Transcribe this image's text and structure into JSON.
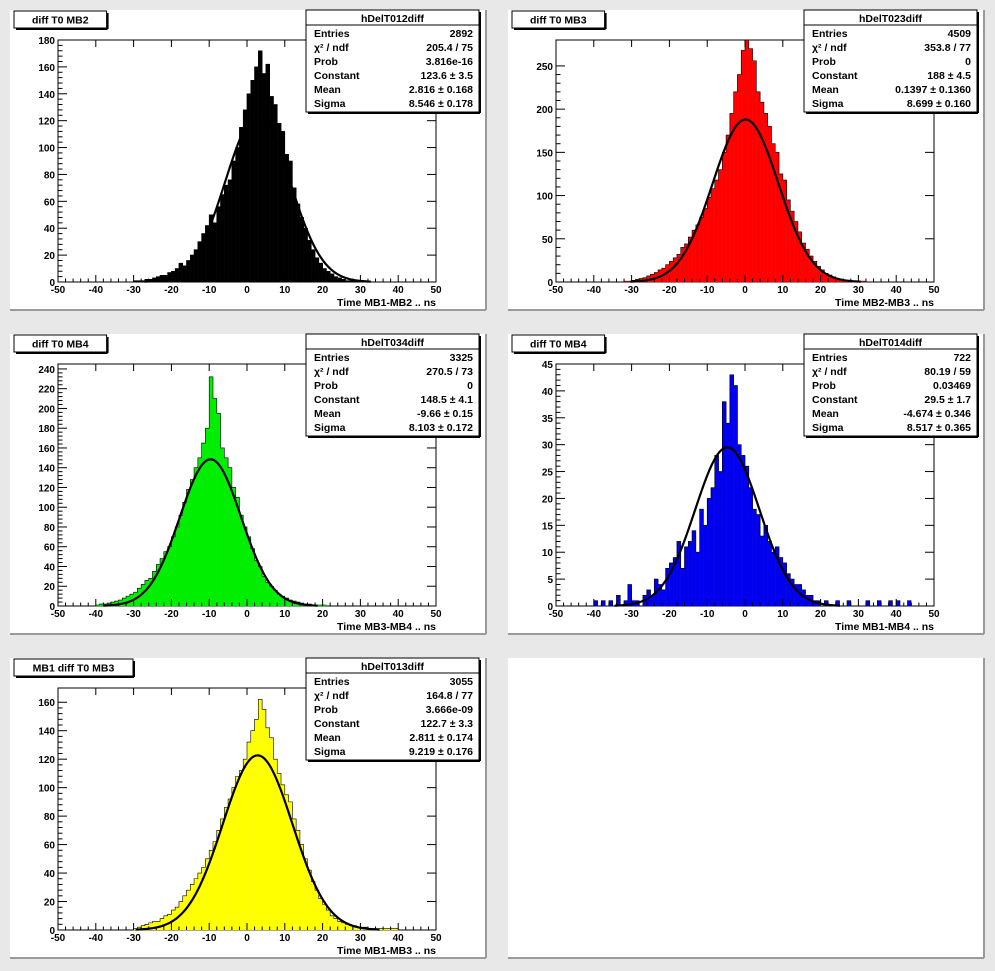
{
  "chart_data": [
    {
      "type": "histogram",
      "pad_title": "diff T0 MB2",
      "stats_title": "hDelT012diff",
      "color": "#000000",
      "xlabel": "Time MB1-MB2  ..  ns",
      "xlim": [
        -50,
        50
      ],
      "ylim": [
        0,
        180
      ],
      "xticks": [
        "-50",
        "-40",
        "-30",
        "-20",
        "-10",
        "0",
        "10",
        "20",
        "30",
        "40",
        "50"
      ],
      "yticks": [
        "0",
        "20",
        "40",
        "60",
        "80",
        "100",
        "120",
        "140",
        "160",
        "180"
      ],
      "stats": [
        {
          "label": "Entries",
          "value": "2892"
        },
        {
          "label": "χ² / ndf",
          "value": "205.4 / 75"
        },
        {
          "label": "Prob",
          "value": "3.816e-16"
        },
        {
          "label": "Constant",
          "value": "123.6 ± 3.5"
        },
        {
          "label": "Mean",
          "value": "2.816 ± 0.168"
        },
        {
          "label": "Sigma",
          "value": "8.546 ± 0.178"
        }
      ],
      "fit": {
        "constant": 123.6,
        "mean": 2.816,
        "sigma": 8.546
      },
      "bin_width": 1,
      "bins_x": [
        -30,
        -29,
        -28,
        -27,
        -26,
        -25,
        -24,
        -23,
        -22,
        -21,
        -20,
        -19,
        -18,
        -17,
        -16,
        -15,
        -14,
        -13,
        -12,
        -11,
        -10,
        -9,
        -8,
        -7,
        -6,
        -5,
        -4,
        -3,
        -2,
        -1,
        0,
        1,
        2,
        3,
        4,
        5,
        6,
        7,
        8,
        9,
        10,
        11,
        12,
        13,
        14,
        15,
        16,
        17,
        18,
        19,
        20,
        21,
        22,
        23,
        24,
        25,
        26,
        27,
        28,
        29
      ],
      "bins_y": [
        1,
        1,
        1,
        2,
        2,
        3,
        4,
        5,
        5,
        7,
        8,
        10,
        14,
        12,
        16,
        20,
        24,
        30,
        36,
        42,
        50,
        44,
        56,
        65,
        72,
        76,
        90,
        100,
        115,
        128,
        140,
        150,
        160,
        172,
        155,
        162,
        138,
        132,
        118,
        112,
        95,
        90,
        70,
        58,
        48,
        40,
        31,
        24,
        18,
        14,
        10,
        8,
        6,
        4,
        3,
        2,
        1,
        1,
        1,
        1
      ]
    },
    {
      "type": "histogram",
      "pad_title": "diff T0 MB3",
      "stats_title": "hDelT023diff",
      "color": "#ff0000",
      "xlabel": "Time MB2-MB3  ..  ns",
      "xlim": [
        -50,
        50
      ],
      "ylim": [
        0,
        280
      ],
      "xticks": [
        "-50",
        "-40",
        "-30",
        "-20",
        "-10",
        "0",
        "10",
        "20",
        "30",
        "40",
        "50"
      ],
      "yticks": [
        "0",
        "50",
        "100",
        "150",
        "200",
        "250"
      ],
      "stats": [
        {
          "label": "Entries",
          "value": "4509"
        },
        {
          "label": "χ² / ndf",
          "value": "353.8 / 77"
        },
        {
          "label": "Prob",
          "value": "0"
        },
        {
          "label": "Constant",
          "value": "188 ± 4.5"
        },
        {
          "label": "Mean",
          "value": "0.1397 ± 0.1360"
        },
        {
          "label": "Sigma",
          "value": "8.699 ± 0.160"
        }
      ],
      "fit": {
        "constant": 188,
        "mean": 0.1397,
        "sigma": 8.699
      },
      "bin_width": 1,
      "bins_x": [
        -32,
        -31,
        -30,
        -29,
        -28,
        -27,
        -26,
        -25,
        -24,
        -23,
        -22,
        -21,
        -20,
        -19,
        -18,
        -17,
        -16,
        -15,
        -14,
        -13,
        -12,
        -11,
        -10,
        -9,
        -8,
        -7,
        -6,
        -5,
        -4,
        -3,
        -2,
        -1,
        0,
        1,
        2,
        3,
        4,
        5,
        6,
        7,
        8,
        9,
        10,
        11,
        12,
        13,
        14,
        15,
        16,
        17,
        18,
        19,
        20,
        21,
        22,
        23,
        24,
        25,
        26,
        27,
        28,
        29,
        30,
        31
      ],
      "bins_y": [
        1,
        1,
        2,
        3,
        4,
        5,
        7,
        9,
        11,
        14,
        16,
        20,
        24,
        28,
        32,
        40,
        44,
        52,
        60,
        66,
        75,
        85,
        98,
        108,
        118,
        130,
        150,
        170,
        195,
        220,
        240,
        268,
        285,
        270,
        256,
        220,
        208,
        195,
        180,
        160,
        150,
        125,
        118,
        95,
        82,
        70,
        58,
        45,
        38,
        30,
        24,
        18,
        14,
        10,
        8,
        6,
        4,
        3,
        2,
        2,
        1,
        1,
        1,
        1
      ]
    },
    {
      "type": "histogram",
      "pad_title": "diff T0 MB4",
      "stats_title": "hDelT034diff",
      "color": "#00ee00",
      "xlabel": "Time MB3-MB4  ..  ns",
      "xlim": [
        -50,
        50
      ],
      "ylim": [
        0,
        245
      ],
      "xticks": [
        "-50",
        "-40",
        "-30",
        "-20",
        "-10",
        "0",
        "10",
        "20",
        "30",
        "40",
        "50"
      ],
      "yticks": [
        "0",
        "20",
        "40",
        "60",
        "80",
        "100",
        "120",
        "140",
        "160",
        "180",
        "200",
        "220",
        "240"
      ],
      "stats": [
        {
          "label": "Entries",
          "value": "3325"
        },
        {
          "label": "χ² / ndf",
          "value": "270.5 / 73"
        },
        {
          "label": "Prob",
          "value": "0"
        },
        {
          "label": "Constant",
          "value": "148.5 ± 4.1"
        },
        {
          "label": "Mean",
          "value": "-9.66 ± 0.15"
        },
        {
          "label": "Sigma",
          "value": "8.103 ± 0.172"
        }
      ],
      "fit": {
        "constant": 148.5,
        "mean": -9.66,
        "sigma": 8.103
      },
      "bin_width": 1,
      "bins_x": [
        -40,
        -39,
        -38,
        -37,
        -36,
        -35,
        -34,
        -33,
        -32,
        -31,
        -30,
        -29,
        -28,
        -27,
        -26,
        -25,
        -24,
        -23,
        -22,
        -21,
        -20,
        -19,
        -18,
        -17,
        -16,
        -15,
        -14,
        -13,
        -12,
        -11,
        -10,
        -9,
        -8,
        -7,
        -6,
        -5,
        -4,
        -3,
        -2,
        -1,
        0,
        1,
        2,
        3,
        4,
        5,
        6,
        7,
        8,
        9,
        10,
        11,
        12,
        13,
        14,
        15,
        16,
        17,
        18,
        19,
        20
      ],
      "bins_y": [
        1,
        2,
        2,
        3,
        4,
        5,
        6,
        8,
        10,
        12,
        14,
        18,
        22,
        26,
        28,
        35,
        42,
        48,
        55,
        60,
        70,
        80,
        92,
        105,
        118,
        128,
        140,
        150,
        165,
        180,
        232,
        210,
        195,
        160,
        150,
        140,
        120,
        110,
        92,
        80,
        70,
        58,
        46,
        40,
        30,
        24,
        20,
        16,
        12,
        10,
        8,
        6,
        5,
        4,
        3,
        2,
        2,
        1,
        1,
        1,
        1
      ]
    },
    {
      "type": "histogram",
      "pad_title": "diff T0 MB4",
      "stats_title": "hDelT014diff",
      "color": "#0000ee",
      "xlabel": "Time MB1-MB4  ..  ns",
      "xlim": [
        -50,
        50
      ],
      "ylim": [
        0,
        45
      ],
      "xticks": [
        "-50",
        "-40",
        "-30",
        "-20",
        "-10",
        "0",
        "10",
        "20",
        "30",
        "40",
        "50"
      ],
      "yticks": [
        "0",
        "5",
        "10",
        "15",
        "20",
        "25",
        "30",
        "35",
        "40",
        "45"
      ],
      "stats": [
        {
          "label": "Entries",
          "value": "722"
        },
        {
          "label": "χ² / ndf",
          "value": "80.19 / 59"
        },
        {
          "label": "Prob",
          "value": "0.03469"
        },
        {
          "label": "Constant",
          "value": "29.5 ± 1.7"
        },
        {
          "label": "Mean",
          "value": "-4.674 ± 0.346"
        },
        {
          "label": "Sigma",
          "value": "8.517 ± 0.365"
        }
      ],
      "fit": {
        "constant": 29.5,
        "mean": -4.674,
        "sigma": 8.517
      },
      "bin_width": 1,
      "bins_x": [
        -40,
        -39,
        -38,
        -37,
        -36,
        -35,
        -34,
        -33,
        -32,
        -31,
        -30,
        -29,
        -28,
        -27,
        -26,
        -25,
        -24,
        -23,
        -22,
        -21,
        -20,
        -19,
        -18,
        -17,
        -16,
        -15,
        -14,
        -13,
        -12,
        -11,
        -10,
        -9,
        -8,
        -7,
        -6,
        -5,
        -4,
        -3,
        -2,
        -1,
        0,
        1,
        2,
        3,
        4,
        5,
        6,
        7,
        8,
        9,
        10,
        11,
        12,
        13,
        14,
        15,
        16,
        17,
        18,
        19,
        20,
        21,
        22,
        23,
        24,
        25,
        26,
        27,
        28,
        29,
        30,
        31,
        32,
        33,
        34,
        35,
        36,
        37,
        38,
        39,
        40,
        41,
        42,
        43
      ],
      "bins_y": [
        1,
        0,
        1,
        0,
        1,
        0,
        2,
        0,
        1,
        4,
        1,
        1,
        0,
        2,
        3,
        2,
        5,
        4,
        3,
        7,
        8,
        9,
        12,
        7,
        11,
        12,
        14,
        10,
        18,
        15,
        20,
        22,
        28,
        25,
        38,
        34,
        43,
        41,
        30,
        28,
        26,
        22,
        18,
        17,
        13,
        15,
        12,
        10,
        11,
        9,
        8,
        6,
        5,
        4,
        4,
        3,
        2,
        2,
        1,
        1,
        0,
        1,
        0,
        0,
        1,
        0,
        0,
        1,
        0,
        0,
        0,
        0,
        1,
        0,
        0,
        1,
        0,
        0,
        1,
        0,
        1,
        0,
        0,
        1
      ]
    },
    {
      "type": "histogram",
      "pad_title": "MB1 diff T0 MB3",
      "stats_title": "hDelT013diff",
      "color": "#ffff00",
      "xlabel": "Time MB1-MB3  ..  ns",
      "xlim": [
        -50,
        50
      ],
      "ylim": [
        0,
        170
      ],
      "xticks": [
        "-50",
        "-40",
        "-30",
        "-20",
        "-10",
        "0",
        "10",
        "20",
        "30",
        "40",
        "50"
      ],
      "yticks": [
        "0",
        "20",
        "40",
        "60",
        "80",
        "100",
        "120",
        "140",
        "160"
      ],
      "stats": [
        {
          "label": "Entries",
          "value": "3055"
        },
        {
          "label": "χ² / ndf",
          "value": "164.8 / 77"
        },
        {
          "label": "Prob",
          "value": "3.666e-09"
        },
        {
          "label": "Constant",
          "value": "122.7 ± 3.3"
        },
        {
          "label": "Mean",
          "value": "2.811 ± 0.174"
        },
        {
          "label": "Sigma",
          "value": "9.219 ± 0.176"
        }
      ],
      "fit": {
        "constant": 122.7,
        "mean": 2.811,
        "sigma": 9.219
      },
      "bin_width": 1,
      "bins_x": [
        -30,
        -29,
        -28,
        -27,
        -26,
        -25,
        -24,
        -23,
        -22,
        -21,
        -20,
        -19,
        -18,
        -17,
        -16,
        -15,
        -14,
        -13,
        -12,
        -11,
        -10,
        -9,
        -8,
        -7,
        -6,
        -5,
        -4,
        -3,
        -2,
        -1,
        0,
        1,
        2,
        3,
        4,
        5,
        6,
        7,
        8,
        9,
        10,
        11,
        12,
        13,
        14,
        15,
        16,
        17,
        18,
        19,
        20,
        21,
        22,
        23,
        24,
        25,
        26,
        27,
        28,
        29,
        30,
        31,
        32,
        33,
        34,
        35,
        36,
        37,
        38,
        39
      ],
      "bins_y": [
        1,
        2,
        3,
        4,
        5,
        6,
        6,
        8,
        10,
        11,
        14,
        16,
        20,
        24,
        28,
        32,
        36,
        40,
        44,
        50,
        56,
        62,
        70,
        78,
        86,
        92,
        100,
        108,
        112,
        120,
        132,
        140,
        148,
        162,
        155,
        142,
        135,
        120,
        110,
        102,
        95,
        90,
        78,
        70,
        60,
        50,
        42,
        34,
        28,
        22,
        18,
        14,
        10,
        8,
        6,
        5,
        4,
        3,
        3,
        2,
        2,
        2,
        1,
        1,
        1,
        1,
        1,
        1,
        1,
        1
      ]
    }
  ]
}
